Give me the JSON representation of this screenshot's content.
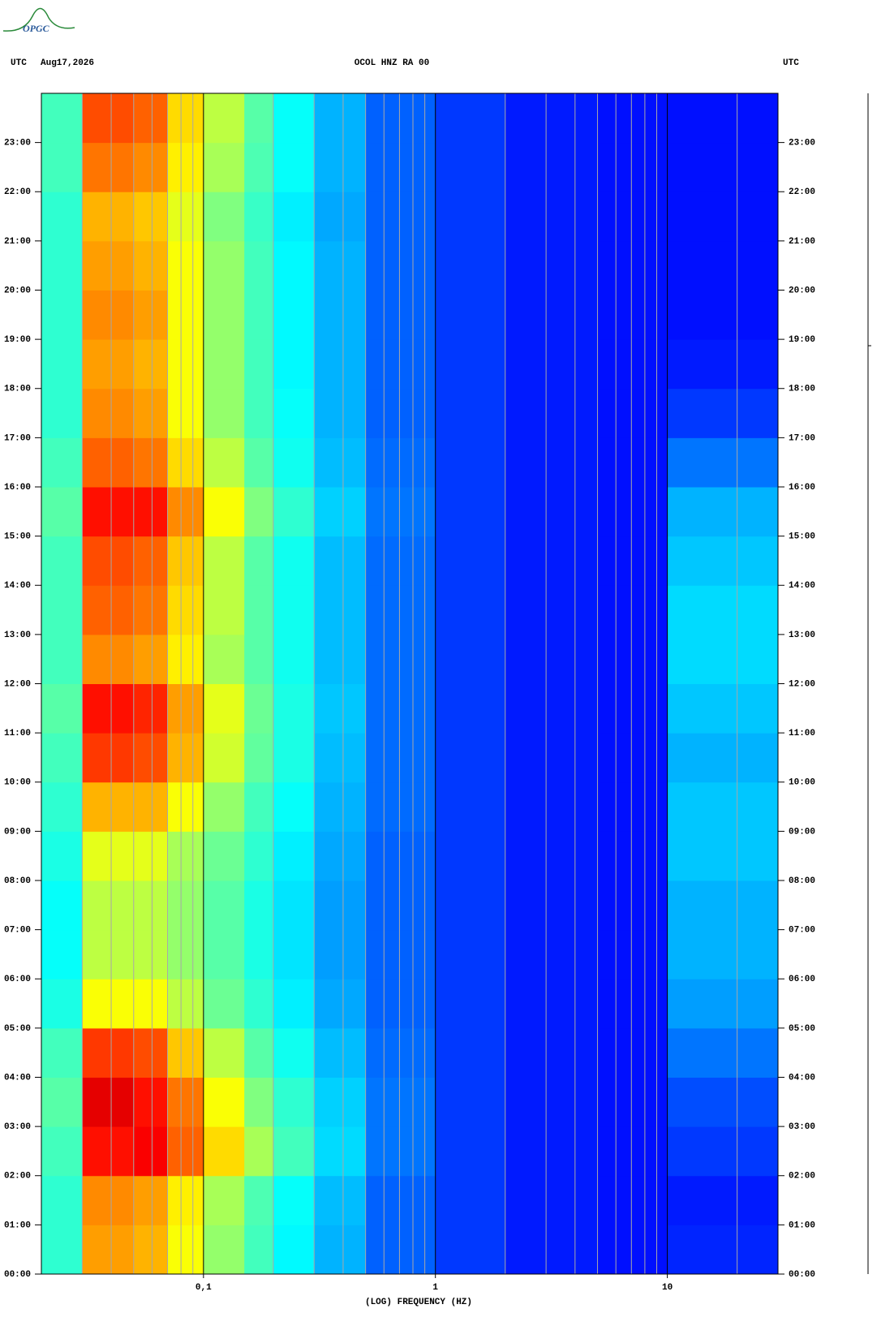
{
  "logo": "OPGC",
  "chart_data": {
    "type": "heatmap",
    "header_left_zone": "UTC",
    "date": "Aug17,2026",
    "title": "OCOL HNZ RA 00",
    "header_right_zone": "UTC",
    "x_label": "(LOG) FREQUENCY (HZ)",
    "x_scale": "log",
    "xlim": [
      0.02,
      30
    ],
    "xticks": [
      {
        "value": 0.1,
        "label": "0,1"
      },
      1,
      10
    ],
    "x_minor_grid": [
      0.03,
      0.04,
      0.05,
      0.06,
      0.07,
      0.08,
      0.09,
      0.2,
      0.3,
      0.4,
      0.5,
      0.6,
      0.7,
      0.8,
      0.9,
      2,
      3,
      4,
      5,
      6,
      7,
      8,
      9,
      20
    ],
    "ylim": [
      0,
      24
    ],
    "yticks": [
      {
        "value": 0,
        "label": "00:00"
      },
      {
        "value": 1,
        "label": "01:00"
      },
      {
        "value": 2,
        "label": "02:00"
      },
      {
        "value": 3,
        "label": "03:00"
      },
      {
        "value": 4,
        "label": "04:00"
      },
      {
        "value": 5,
        "label": "05:00"
      },
      {
        "value": 6,
        "label": "06:00"
      },
      {
        "value": 7,
        "label": "07:00"
      },
      {
        "value": 8,
        "label": "08:00"
      },
      {
        "value": 9,
        "label": "09:00"
      },
      {
        "value": 10,
        "label": "10:00"
      },
      {
        "value": 11,
        "label": "11:00"
      },
      {
        "value": 12,
        "label": "12:00"
      },
      {
        "value": 13,
        "label": "13:00"
      },
      {
        "value": 14,
        "label": "14:00"
      },
      {
        "value": 15,
        "label": "15:00"
      },
      {
        "value": 16,
        "label": "16:00"
      },
      {
        "value": 17,
        "label": "17:00"
      },
      {
        "value": 18,
        "label": "18:00"
      },
      {
        "value": 19,
        "label": "19:00"
      },
      {
        "value": 20,
        "label": "20:00"
      },
      {
        "value": 21,
        "label": "21:00"
      },
      {
        "value": 22,
        "label": "22:00"
      },
      {
        "value": 23,
        "label": "23:00"
      }
    ],
    "x_bins": [
      0.02,
      0.03,
      0.05,
      0.07,
      0.1,
      0.15,
      0.2,
      0.3,
      0.5,
      1,
      2,
      5,
      10,
      30
    ],
    "y_bins": [
      0,
      1,
      2,
      3,
      4,
      5,
      6,
      7,
      8,
      9,
      10,
      11,
      12,
      13,
      14,
      15,
      16,
      17,
      18,
      19,
      20,
      21,
      22,
      23,
      24
    ],
    "zlim": [
      0,
      100
    ],
    "colormap": "jet",
    "values": [
      [
        42,
        72,
        70,
        62,
        52,
        44,
        37,
        30,
        22,
        18,
        15,
        14,
        16
      ],
      [
        42,
        74,
        72,
        64,
        54,
        45,
        38,
        31,
        22,
        18,
        15,
        14,
        15
      ],
      [
        44,
        86,
        88,
        78,
        66,
        54,
        44,
        34,
        24,
        18,
        15,
        14,
        18
      ],
      [
        46,
        90,
        86,
        76,
        62,
        50,
        42,
        33,
        24,
        18,
        15,
        14,
        20
      ],
      [
        44,
        82,
        80,
        68,
        56,
        46,
        39,
        31,
        23,
        18,
        15,
        14,
        24
      ],
      [
        40,
        62,
        62,
        56,
        48,
        42,
        36,
        29,
        22,
        18,
        15,
        14,
        28
      ],
      [
        38,
        56,
        56,
        52,
        46,
        40,
        35,
        28,
        22,
        18,
        15,
        14,
        30
      ],
      [
        38,
        56,
        56,
        52,
        46,
        40,
        35,
        28,
        22,
        18,
        15,
        14,
        30
      ],
      [
        40,
        60,
        60,
        54,
        48,
        42,
        36,
        29,
        22,
        18,
        15,
        14,
        32
      ],
      [
        42,
        70,
        70,
        62,
        52,
        44,
        38,
        30,
        23,
        18,
        15,
        14,
        32
      ],
      [
        44,
        82,
        80,
        70,
        58,
        47,
        40,
        31,
        23,
        18,
        15,
        14,
        30
      ],
      [
        46,
        86,
        84,
        72,
        60,
        48,
        40,
        32,
        23,
        18,
        15,
        14,
        32
      ],
      [
        44,
        74,
        72,
        64,
        54,
        46,
        39,
        31,
        23,
        18,
        15,
        14,
        34
      ],
      [
        44,
        78,
        76,
        66,
        56,
        46,
        39,
        31,
        23,
        18,
        15,
        14,
        34
      ],
      [
        44,
        80,
        78,
        68,
        56,
        46,
        39,
        31,
        23,
        18,
        15,
        14,
        32
      ],
      [
        46,
        86,
        86,
        74,
        62,
        50,
        42,
        33,
        24,
        18,
        15,
        14,
        30
      ],
      [
        44,
        78,
        76,
        66,
        56,
        46,
        39,
        31,
        23,
        18,
        15,
        14,
        24
      ],
      [
        42,
        74,
        72,
        62,
        52,
        44,
        38,
        30,
        22,
        18,
        15,
        14,
        18
      ],
      [
        42,
        72,
        70,
        62,
        52,
        44,
        37,
        30,
        22,
        18,
        15,
        14,
        15
      ],
      [
        42,
        74,
        72,
        62,
        52,
        44,
        37,
        30,
        22,
        18,
        15,
        14,
        14
      ],
      [
        42,
        72,
        70,
        62,
        52,
        44,
        37,
        30,
        22,
        18,
        15,
        14,
        14
      ],
      [
        42,
        70,
        68,
        60,
        50,
        43,
        36,
        29,
        22,
        18,
        15,
        14,
        14
      ],
      [
        44,
        76,
        74,
        64,
        54,
        45,
        38,
        30,
        22,
        18,
        15,
        14,
        14
      ],
      [
        44,
        80,
        78,
        66,
        56,
        46,
        38,
        30,
        22,
        18,
        15,
        14,
        14
      ]
    ]
  }
}
